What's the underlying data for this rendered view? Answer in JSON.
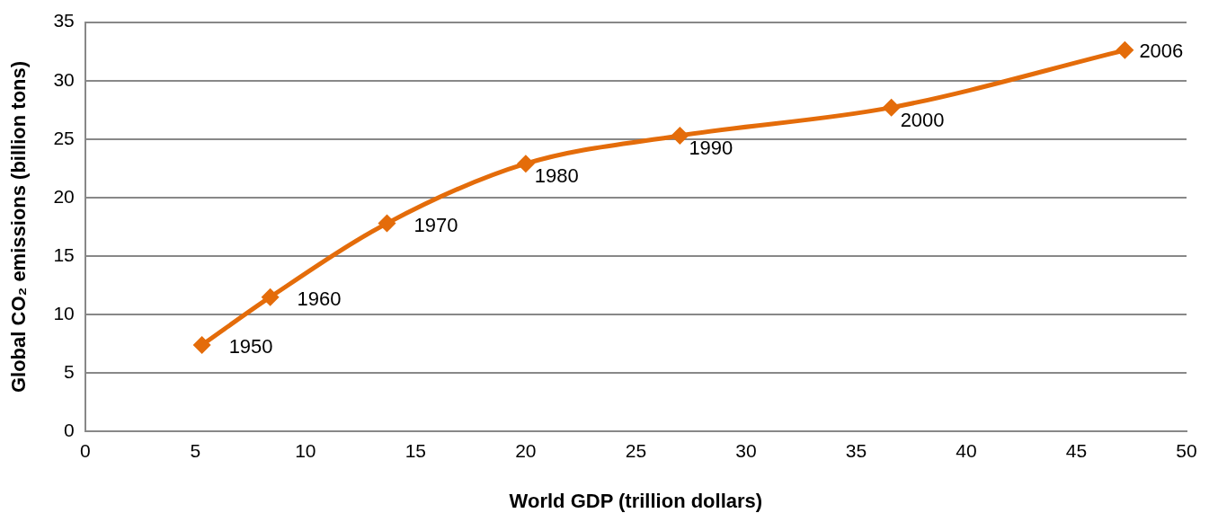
{
  "chart_data": {
    "type": "line",
    "xlabel": "World GDP (trillion dollars)",
    "ylabel": "Global CO₂ emissions (billion tons)",
    "x": [
      5.3,
      8.4,
      13.7,
      20.0,
      27.0,
      36.6,
      47.2
    ],
    "series": [
      {
        "color": "#e46c0a",
        "values": [
          7.4,
          11.5,
          17.8,
          22.9,
          25.3,
          27.7,
          32.6
        ]
      }
    ],
    "xlim": [
      0,
      50
    ],
    "xticks": [
      0,
      5,
      10,
      15,
      20,
      25,
      30,
      35,
      40,
      45,
      50
    ],
    "ylim": [
      0,
      35
    ],
    "yticks": [
      0,
      5,
      10,
      15,
      20,
      25,
      30,
      35
    ],
    "grid": "y",
    "legend": false,
    "marker": "diamond",
    "line_style": "solid",
    "annotations": [
      {
        "text": "1950",
        "x": 5.3,
        "y": 7.4
      },
      {
        "text": "1960",
        "x": 8.4,
        "y": 11.5
      },
      {
        "text": "1970",
        "x": 13.7,
        "y": 17.8
      },
      {
        "text": "1980",
        "x": 20.0,
        "y": 22.9
      },
      {
        "text": "1990",
        "x": 27.0,
        "y": 25.3
      },
      {
        "text": "2000",
        "x": 36.6,
        "y": 27.7
      },
      {
        "text": "2006",
        "x": 47.2,
        "y": 32.6
      }
    ]
  }
}
